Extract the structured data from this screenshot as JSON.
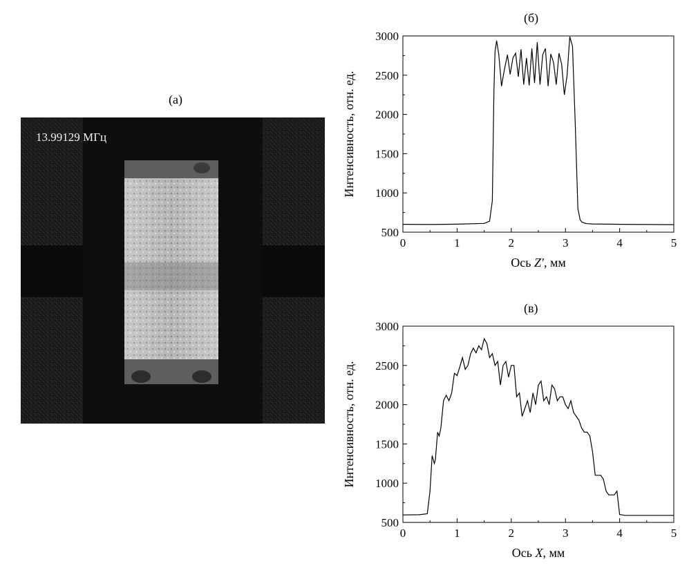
{
  "image_panel": {
    "title": "(а)",
    "frequency_label": "13.99129 МГц"
  },
  "chart_data": [
    {
      "type": "line",
      "title": "(б)",
      "xlabel_prefix": "Ось ",
      "xlabel_var": "Z′",
      "xlabel_suffix": ", мм",
      "ylabel": "Интенсивность, отн. ед.",
      "xlim": [
        0,
        5
      ],
      "ylim": [
        500,
        3000
      ],
      "xticks": [
        0,
        1,
        2,
        3,
        4,
        5
      ],
      "yticks": [
        500,
        1000,
        1500,
        2000,
        2500,
        3000
      ],
      "series": [
        {
          "x": [
            0,
            0.5,
            1.0,
            1.5,
            1.6,
            1.65,
            1.68,
            1.7,
            1.73,
            1.77,
            1.82,
            1.87,
            1.93,
            1.98,
            2.03,
            2.08,
            2.13,
            2.18,
            2.23,
            2.28,
            2.33,
            2.38,
            2.43,
            2.48,
            2.53,
            2.58,
            2.63,
            2.68,
            2.73,
            2.78,
            2.83,
            2.88,
            2.93,
            2.98,
            3.03,
            3.08,
            3.13,
            3.18,
            3.23,
            3.27,
            3.3,
            3.35,
            3.4,
            3.5,
            4.0,
            4.5,
            5.0
          ],
          "y": [
            600,
            598,
            602,
            612,
            640,
            900,
            2300,
            2800,
            2940,
            2760,
            2360,
            2560,
            2760,
            2510,
            2720,
            2780,
            2480,
            2830,
            2380,
            2720,
            2370,
            2840,
            2400,
            2920,
            2380,
            2760,
            2840,
            2360,
            2770,
            2660,
            2380,
            2780,
            2640,
            2250,
            2500,
            2990,
            2870,
            1900,
            800,
            660,
            630,
            615,
            608,
            605,
            600,
            598,
            596
          ]
        }
      ]
    },
    {
      "type": "line",
      "title": "(в)",
      "xlabel_prefix": "Ось ",
      "xlabel_var": "X",
      "xlabel_suffix": ", мм",
      "ylabel": "Интенсивность, отн. ед.",
      "xlim": [
        0,
        5
      ],
      "ylim": [
        500,
        3000
      ],
      "xticks": [
        0,
        1,
        2,
        3,
        4,
        5
      ],
      "yticks": [
        500,
        1000,
        1500,
        2000,
        2500,
        3000
      ],
      "series": [
        {
          "x": [
            0,
            0.3,
            0.45,
            0.5,
            0.54,
            0.58,
            0.6,
            0.64,
            0.67,
            0.7,
            0.75,
            0.8,
            0.85,
            0.9,
            0.95,
            1.0,
            1.05,
            1.1,
            1.15,
            1.2,
            1.25,
            1.3,
            1.35,
            1.4,
            1.45,
            1.5,
            1.55,
            1.6,
            1.65,
            1.7,
            1.75,
            1.8,
            1.85,
            1.9,
            1.95,
            2.0,
            2.05,
            2.1,
            2.15,
            2.2,
            2.25,
            2.3,
            2.35,
            2.4,
            2.45,
            2.5,
            2.55,
            2.6,
            2.65,
            2.7,
            2.75,
            2.8,
            2.85,
            2.9,
            2.95,
            3.0,
            3.05,
            3.1,
            3.15,
            3.2,
            3.25,
            3.3,
            3.35,
            3.4,
            3.45,
            3.5,
            3.55,
            3.6,
            3.65,
            3.7,
            3.75,
            3.8,
            3.85,
            3.9,
            3.95,
            4.0,
            4.05,
            4.1,
            4.15,
            4.2,
            4.25,
            4.3,
            4.35,
            4.4,
            4.45,
            4.5,
            4.55,
            4.6,
            5.0
          ],
          "y": [
            595,
            598,
            610,
            900,
            1350,
            1250,
            1300,
            1650,
            1600,
            1700,
            2050,
            2120,
            2050,
            2150,
            2400,
            2370,
            2480,
            2600,
            2450,
            2500,
            2650,
            2720,
            2660,
            2750,
            2700,
            2840,
            2780,
            2600,
            2650,
            2500,
            2550,
            2250,
            2500,
            2550,
            2350,
            2500,
            2500,
            2100,
            2150,
            1850,
            1950,
            2050,
            1900,
            2150,
            2000,
            2250,
            2300,
            2050,
            2100,
            2000,
            2250,
            2200,
            2050,
            2100,
            2100,
            2000,
            1950,
            2050,
            1900,
            1850,
            1800,
            1700,
            1650,
            1650,
            1600,
            1400,
            1100,
            1100,
            1100,
            1050,
            900,
            850,
            850,
            850,
            900,
            600,
            595,
            590,
            590,
            590,
            590,
            590,
            590,
            590,
            590,
            590,
            590,
            590,
            590
          ]
        }
      ]
    }
  ]
}
